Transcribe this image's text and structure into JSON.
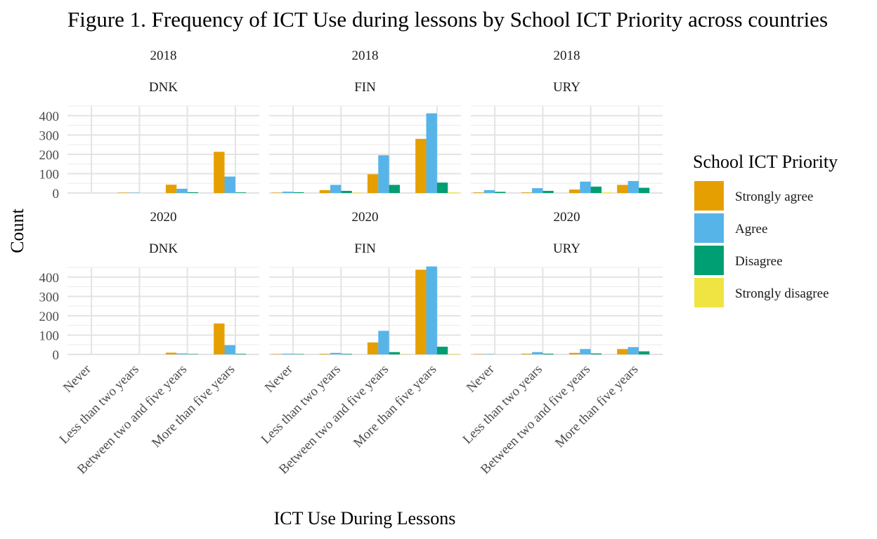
{
  "chart_data": {
    "type": "bar",
    "title": "Figure 1. Frequency of ICT Use during lessons by School ICT Priority across countries",
    "xlabel": "ICT Use During Lessons",
    "ylabel": "Count",
    "ylim": [
      0,
      450
    ],
    "yticks": [
      "0",
      "100",
      "200",
      "300",
      "400"
    ],
    "categories": [
      "Never",
      "Less than two years",
      "Between two and five years",
      "More than five years"
    ],
    "legend": {
      "title": "School ICT Priority",
      "position": "right",
      "entries": [
        {
          "name": "Strongly agree",
          "color": "#E69F00"
        },
        {
          "name": "Agree",
          "color": "#56B4E9"
        },
        {
          "name": "Disagree",
          "color": "#009E73"
        },
        {
          "name": "Strongly disagree",
          "color": "#F0E442"
        }
      ]
    },
    "grid": true,
    "panels": [
      {
        "year": "2018",
        "country": "DNK",
        "series": [
          {
            "name": "Strongly agree",
            "values": [
              0,
              2,
              43,
              213
            ]
          },
          {
            "name": "Agree",
            "values": [
              0,
              2,
              22,
              85
            ]
          },
          {
            "name": "Disagree",
            "values": [
              0,
              0,
              4,
              3
            ]
          },
          {
            "name": "Strongly disagree",
            "values": [
              0,
              0,
              0,
              0
            ]
          }
        ]
      },
      {
        "year": "2018",
        "country": "FIN",
        "series": [
          {
            "name": "Strongly agree",
            "values": [
              2,
              15,
              97,
              280
            ]
          },
          {
            "name": "Agree",
            "values": [
              7,
              42,
              195,
              412
            ]
          },
          {
            "name": "Disagree",
            "values": [
              4,
              11,
              42,
              54
            ]
          },
          {
            "name": "Strongly disagree",
            "values": [
              0,
              2,
              0,
              3
            ]
          }
        ]
      },
      {
        "year": "2018",
        "country": "URY",
        "series": [
          {
            "name": "Strongly agree",
            "values": [
              3,
              3,
              18,
              42
            ]
          },
          {
            "name": "Agree",
            "values": [
              15,
              25,
              59,
              62
            ]
          },
          {
            "name": "Disagree",
            "values": [
              6,
              11,
              33,
              27
            ]
          },
          {
            "name": "Strongly disagree",
            "values": [
              0,
              0,
              3,
              0
            ]
          }
        ]
      },
      {
        "year": "2020",
        "country": "DNK",
        "series": [
          {
            "name": "Strongly agree",
            "values": [
              0,
              0,
              9,
              160
            ]
          },
          {
            "name": "Agree",
            "values": [
              0,
              0,
              5,
              48
            ]
          },
          {
            "name": "Disagree",
            "values": [
              0,
              0,
              2,
              3
            ]
          },
          {
            "name": "Strongly disagree",
            "values": [
              0,
              0,
              0,
              0
            ]
          }
        ]
      },
      {
        "year": "2020",
        "country": "FIN",
        "series": [
          {
            "name": "Strongly agree",
            "values": [
              2,
              3,
              62,
              438
            ]
          },
          {
            "name": "Agree",
            "values": [
              4,
              8,
              122,
              455
            ]
          },
          {
            "name": "Disagree",
            "values": [
              2,
              3,
              12,
              40
            ]
          },
          {
            "name": "Strongly disagree",
            "values": [
              0,
              0,
              2,
              3
            ]
          }
        ]
      },
      {
        "year": "2020",
        "country": "URY",
        "series": [
          {
            "name": "Strongly agree",
            "values": [
              2,
              4,
              8,
              28
            ]
          },
          {
            "name": "Agree",
            "values": [
              2,
              12,
              28,
              38
            ]
          },
          {
            "name": "Disagree",
            "values": [
              0,
              4,
              5,
              16
            ]
          },
          {
            "name": "Strongly disagree",
            "values": [
              0,
              0,
              0,
              0
            ]
          }
        ]
      }
    ]
  }
}
